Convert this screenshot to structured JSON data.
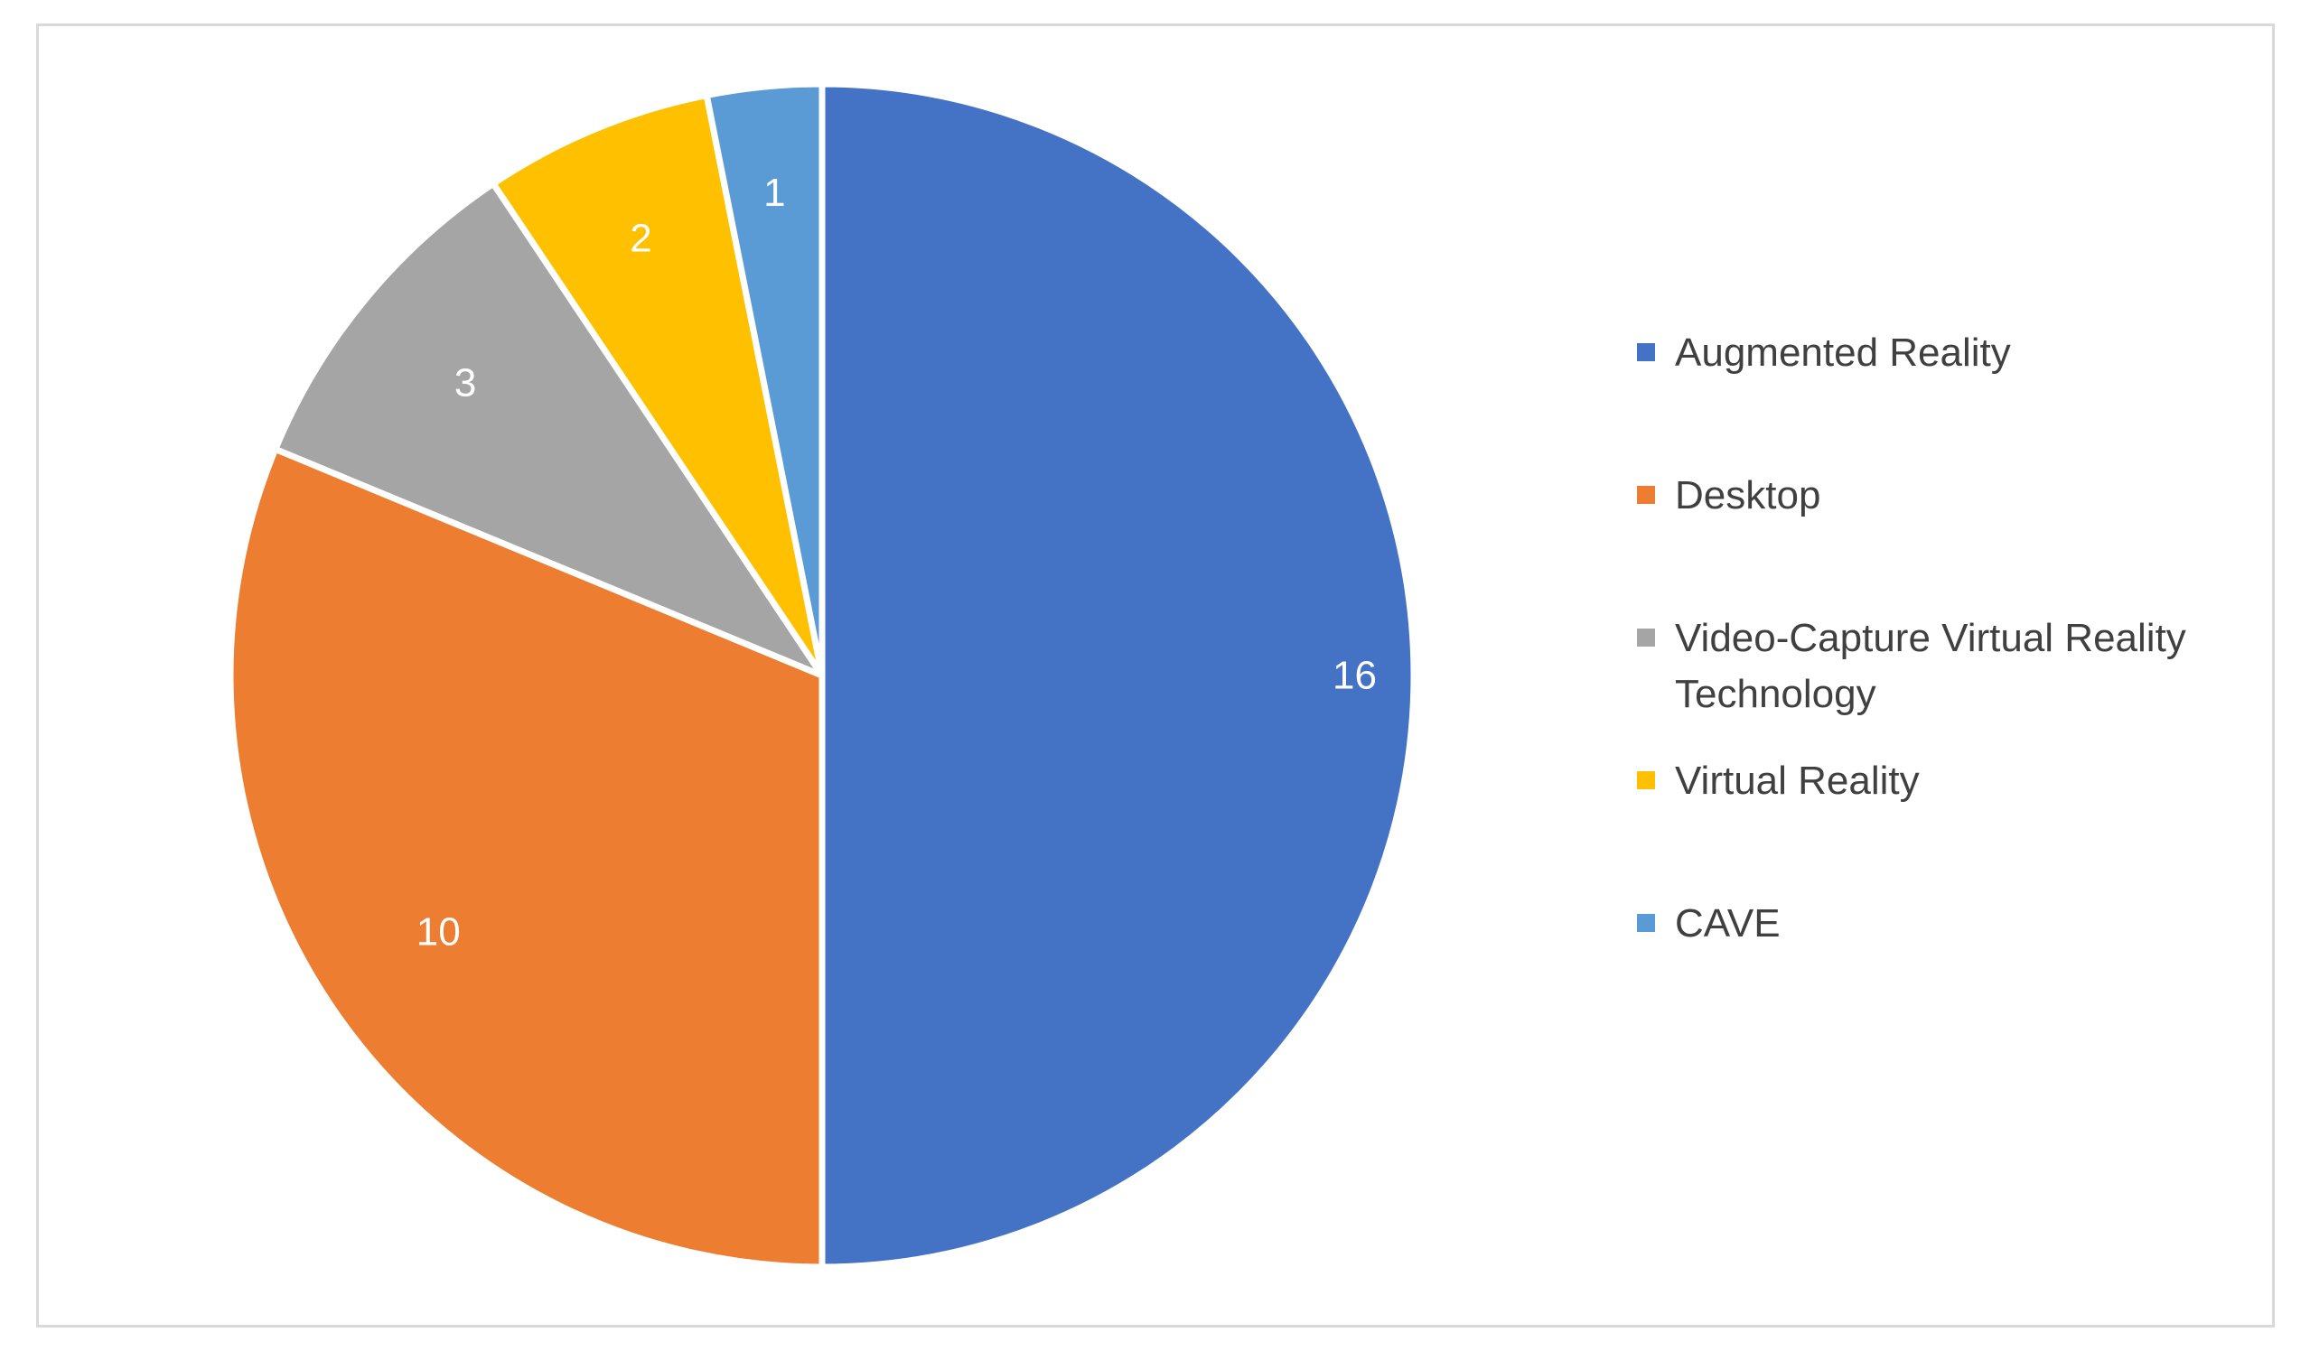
{
  "chart_data": {
    "type": "pie",
    "title": "",
    "categories": [
      "Augmented Reality",
      "Desktop",
      "Video-Capture Virtual Reality Technology",
      "Virtual Reality",
      "CAVE"
    ],
    "values": [
      16,
      10,
      3,
      2,
      1
    ],
    "colors": [
      "#4472c4",
      "#ed7d31",
      "#a5a5a5",
      "#ffc000",
      "#5b9bd5"
    ],
    "start_angle": "12 o'clock",
    "direction": "clockwise",
    "data_labels": "inside",
    "legend_position": "right"
  }
}
